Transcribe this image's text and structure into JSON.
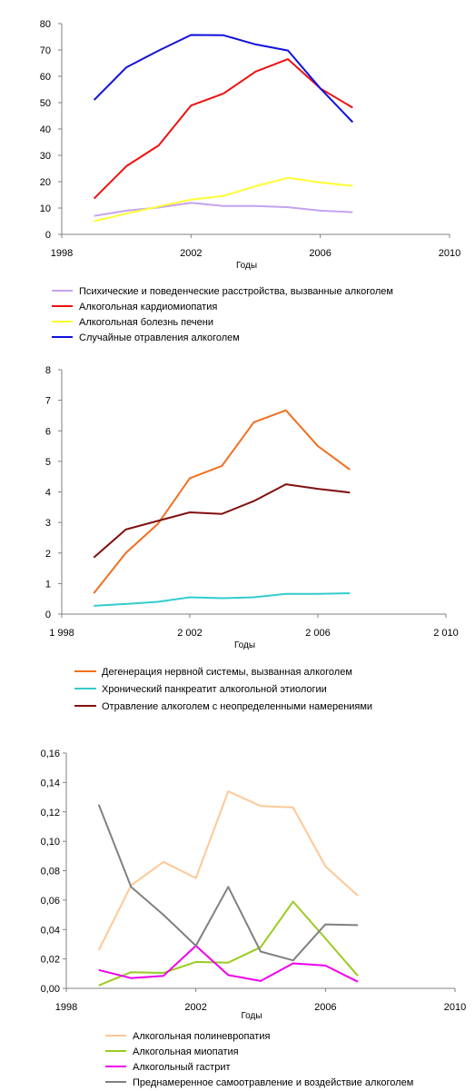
{
  "chart_data": [
    {
      "type": "line",
      "xlabel": "Годы",
      "ylabel": "",
      "xlim": [
        1998,
        2010
      ],
      "ylim": [
        0,
        80
      ],
      "xticks": [
        "1998",
        "2002",
        "2006",
        "2010"
      ],
      "yticks": [
        "0",
        "10",
        "20",
        "30",
        "40",
        "50",
        "60",
        "70",
        "80"
      ],
      "legend_position": "bottom",
      "grid": false,
      "x": [
        1999,
        2000,
        2001,
        2002,
        2003,
        2004,
        2005,
        2006,
        2007
      ],
      "series": [
        {
          "name": "Психические и поведенческие расстройства, вызванные алкоголем",
          "color": "#C4A3F0",
          "values": [
            7.0,
            9.0,
            10.2,
            12.0,
            10.8,
            10.8,
            10.3,
            9.0,
            8.4
          ]
        },
        {
          "name": "Алкогольная кардиомиопатия",
          "color": "#EE1111",
          "values": [
            13.6,
            25.9,
            33.8,
            48.9,
            53.4,
            61.8,
            66.5,
            55.4,
            48.1
          ]
        },
        {
          "name": "Алкогольная болезнь печени",
          "color": "#FFFF33",
          "values": [
            5.0,
            7.9,
            10.6,
            13.2,
            14.6,
            18.3,
            21.5,
            19.7,
            18.4
          ]
        },
        {
          "name": "Случайные отравления   алкоголем",
          "color": "#1111DD",
          "values": [
            51.0,
            63.4,
            69.8,
            75.7,
            75.6,
            72.1,
            69.8,
            55.4,
            42.6
          ]
        }
      ]
    },
    {
      "type": "line",
      "xlabel": "Годы",
      "ylabel": "",
      "xlim": [
        1998,
        2010
      ],
      "ylim": [
        0,
        8
      ],
      "xticks": [
        "1 998",
        "2 002",
        "2 006",
        "2 010"
      ],
      "yticks": [
        "0",
        "1",
        "2",
        "3",
        "4",
        "5",
        "6",
        "7",
        "8"
      ],
      "legend_position": "bottom",
      "grid": false,
      "x": [
        1999,
        2000,
        2001,
        2002,
        2003,
        2004,
        2005,
        2006,
        2007
      ],
      "series": [
        {
          "name": "Дегенерация нервной системы, вызванная  алкоголем",
          "color": "#F07020",
          "values": [
            0.68,
            2.0,
            2.95,
            4.45,
            4.85,
            6.28,
            6.67,
            5.5,
            4.73
          ]
        },
        {
          "name": "Хронический панкреатит  алкогольной этиологии",
          "color": "#33CCCC",
          "values": [
            0.27,
            0.33,
            0.4,
            0.55,
            0.52,
            0.55,
            0.66,
            0.66,
            0.68
          ]
        },
        {
          "name": "Отравление алкоголем с неопределенными намерениями",
          "color": "#801010",
          "values": [
            1.85,
            2.77,
            3.05,
            3.33,
            3.28,
            3.7,
            4.25,
            4.1,
            3.98
          ]
        }
      ]
    },
    {
      "type": "line",
      "xlabel": "Годы",
      "ylabel": "",
      "xlim": [
        1998,
        2010
      ],
      "ylim": [
        0,
        0.16
      ],
      "xticks": [
        "1998",
        "2002",
        "2006",
        "2010"
      ],
      "yticks": [
        "0,00",
        "0,02",
        "0,04",
        "0,06",
        "0,08",
        "0,10",
        "0,12",
        "0,14",
        "0,16"
      ],
      "legend_position": "bottom",
      "grid": false,
      "x": [
        1999,
        2000,
        2001,
        2002,
        2003,
        2004,
        2005,
        2006,
        2007
      ],
      "series": [
        {
          "name": "Алкогольная полиневропатия",
          "color": "#FFC896",
          "values": [
            0.026,
            0.07,
            0.086,
            0.075,
            0.134,
            0.124,
            0.123,
            0.083,
            0.063
          ]
        },
        {
          "name": "Алкогольная миопатия",
          "color": "#99CC22",
          "values": [
            0.002,
            0.011,
            0.0105,
            0.018,
            0.0175,
            0.028,
            0.059,
            0.034,
            0.0085
          ]
        },
        {
          "name": "Алкогольный гастрит",
          "color": "#EE00EE",
          "values": [
            0.0125,
            0.007,
            0.0085,
            0.029,
            0.009,
            0.005,
            0.017,
            0.0155,
            0.0045
          ]
        },
        {
          "name": "Преднамеренное самоотравление  и воздействие алкоголем",
          "color": "#808080",
          "values": [
            0.125,
            0.069,
            0.05,
            0.029,
            0.069,
            0.025,
            0.019,
            0.0435,
            0.043
          ]
        }
      ]
    }
  ]
}
